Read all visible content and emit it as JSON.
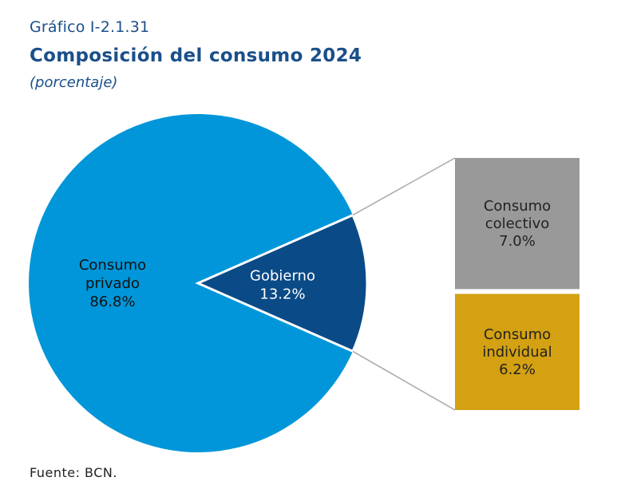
{
  "header": {
    "caption": "Gráfico I-2.1.31",
    "title": "Composición del consumo 2024",
    "subtitle": "(porcentaje)"
  },
  "footer": {
    "source": "Fuente: BCN."
  },
  "chart_data": {
    "type": "pie",
    "title": "Composición del consumo 2024",
    "unit": "porcentaje",
    "slices": [
      {
        "name": "Consumo privado",
        "label": [
          "Consumo",
          "privado"
        ],
        "value": 86.8,
        "value_label": "86.8%",
        "color": "#0096d9"
      },
      {
        "name": "Gobierno",
        "label": [
          "Gobierno"
        ],
        "value": 13.2,
        "value_label": "13.2%",
        "color": "#0a4a87"
      }
    ],
    "breakdown": {
      "of": "Gobierno",
      "parts": [
        {
          "name": "Consumo colectivo",
          "label": [
            "Consumo",
            "colectivo"
          ],
          "value": 7.0,
          "value_label": "7.0%",
          "color": "#999999"
        },
        {
          "name": "Consumo individual",
          "label": [
            "Consumo",
            "individual"
          ],
          "value": 6.2,
          "value_label": "6.2%",
          "color": "#d4a112"
        }
      ]
    }
  }
}
